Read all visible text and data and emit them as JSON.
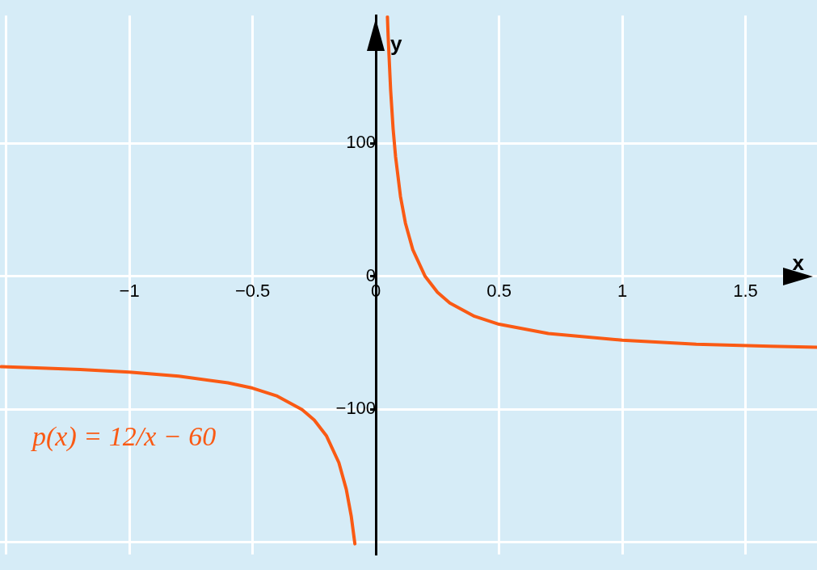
{
  "chart_data": {
    "type": "line",
    "xlabel": "x",
    "ylabel": "y",
    "x": [
      -1.52,
      -1.4,
      -1.2,
      -1.0,
      -0.8,
      -0.6,
      -0.5,
      -0.4,
      -0.3,
      -0.25,
      -0.2,
      -0.15,
      -0.12,
      -0.1,
      -0.085,
      0,
      0.047,
      0.05,
      0.06,
      0.07,
      0.08,
      0.1,
      0.12,
      0.15,
      0.2,
      0.25,
      0.3,
      0.4,
      0.5,
      0.7,
      1.0,
      1.3,
      1.6,
      1.79
    ],
    "series": [
      {
        "color": "#fa5a14",
        "values": [
          -67.9,
          -68.6,
          -70,
          -72,
          -75,
          -80,
          -84,
          -90,
          -100,
          -108,
          -120,
          -140,
          -160,
          -180,
          -201,
          null,
          195,
          180,
          140,
          111,
          90,
          60,
          40,
          20,
          0,
          -12,
          -20,
          -30,
          -36,
          -43,
          -48,
          -51,
          -52.5,
          -53.3
        ]
      }
    ],
    "xlim": [
      -1.525,
      1.79
    ],
    "ylim": [
      -209,
      196
    ],
    "xticks": [
      {
        "value": -1.5,
        "label": null
      },
      -1,
      -0.5,
      0,
      0.5,
      1,
      1.5
    ],
    "yticks": [
      {
        "value": -200,
        "label": null
      },
      -100,
      0,
      100
    ],
    "annotations": [
      "p(x) = 12/x − 60"
    ],
    "grid": true,
    "legend": false,
    "marker": "none",
    "line_style": "solid"
  }
}
